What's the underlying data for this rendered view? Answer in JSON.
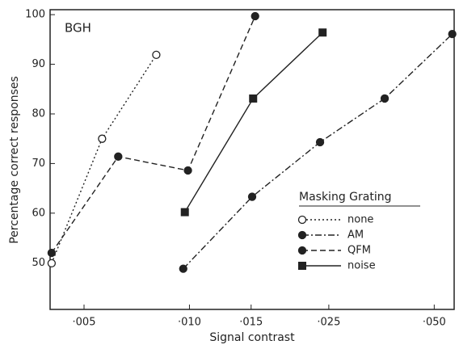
{
  "chart_data": {
    "type": "line",
    "xlabel": "Signal contrast",
    "ylabel": "Percentage correct responses",
    "annotation": "BGH",
    "legend_title": "Masking Grating",
    "legend": "lower right",
    "xscale": "log",
    "xlim": [
      0.004,
      0.057
    ],
    "ylim": [
      40.6,
      101
    ],
    "xticks": [
      {
        "value": 0.005,
        "label": "·005"
      },
      {
        "value": 0.01,
        "label": "·010"
      },
      {
        "value": 0.015,
        "label": "·015"
      },
      {
        "value": 0.025,
        "label": "·025"
      },
      {
        "value": 0.05,
        "label": "·050"
      }
    ],
    "yticks": [
      50,
      60,
      70,
      80,
      90,
      100
    ],
    "series": [
      {
        "name": "none",
        "color": "#222",
        "marker": "open-circle",
        "dash": "dotted",
        "x": [
          0.00404,
          0.00563,
          0.00804
        ],
        "values": [
          49.9,
          75.0,
          91.9
        ]
      },
      {
        "name": "AM",
        "color": "#222",
        "marker": "filled-circle",
        "dash": "dash-dot",
        "x": [
          0.0096,
          0.0151,
          0.0236,
          0.0361,
          0.0563
        ],
        "values": [
          48.8,
          63.3,
          74.3,
          83.1,
          96.1
        ]
      },
      {
        "name": "QFM",
        "color": "#222",
        "marker": "filled-circle",
        "dash": "dashed",
        "x": [
          0.00404,
          0.00626,
          0.0099,
          0.0154
        ],
        "values": [
          52.0,
          71.4,
          68.6,
          99.7
        ]
      },
      {
        "name": "noise",
        "color": "#222",
        "marker": "filled-square",
        "dash": "solid",
        "x": [
          0.0097,
          0.0152,
          0.024
        ],
        "values": [
          60.2,
          83.1,
          96.4
        ]
      }
    ]
  }
}
